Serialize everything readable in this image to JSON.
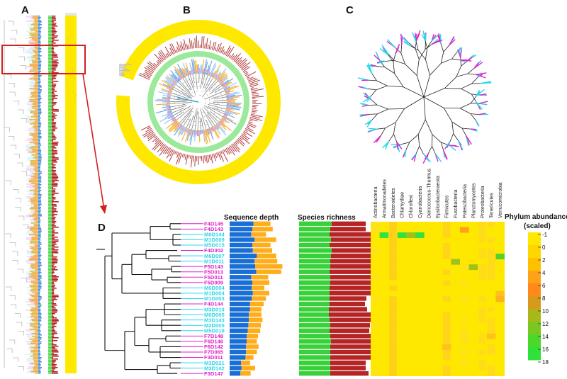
{
  "panels": {
    "a": "A",
    "b": "B",
    "c": "C",
    "d": "D"
  },
  "headers": {
    "depth": "Sequence depth",
    "richness": "Species richness",
    "abundance_line1": "Phylum  abundance",
    "abundance_line2": "(scaled)"
  },
  "colors": {
    "magenta_group": "#e020c8",
    "cyan_group": "#2ad8e8",
    "depth_blue": "#1a6fd6",
    "depth_orange": "#ffad1a",
    "rich_green": "#39d13a",
    "rich_red": "#b52525",
    "heat_base": "#ffe800"
  },
  "phyla": [
    "Actinobacteria",
    "Armatimonadetes",
    "Bacteroidetes",
    "Chlamydiae",
    "Chloroflexi",
    "Cyanobacteria",
    "Deinococcus-Thermus",
    "Epsilonbacteraeota",
    "Firmicutes",
    "Fusobacteria",
    "Patescibacteria",
    "Planctomycetes",
    "Proteobacteria",
    "Tenericutes",
    "Verrucomicrobia"
  ],
  "legend": [
    "-1",
    "0",
    "2",
    "4",
    "6",
    "8",
    "10",
    "12",
    "14",
    "16",
    "18"
  ],
  "samples": [
    {
      "id": "F4D145",
      "group": "magenta",
      "blue": 0.42,
      "orange": 0.3,
      "green": 0.46,
      "red": 0.48
    },
    {
      "id": "F4D143",
      "group": "magenta",
      "blue": 0.4,
      "orange": 0.36,
      "green": 0.44,
      "red": 0.5
    },
    {
      "id": "M6D144",
      "group": "cyan",
      "blue": 0.38,
      "orange": 0.26,
      "green": 0.43,
      "red": 0.58
    },
    {
      "id": "M1D009",
      "group": "cyan",
      "blue": 0.44,
      "orange": 0.38,
      "green": 0.45,
      "red": 0.64
    },
    {
      "id": "M5D015",
      "group": "cyan",
      "blue": 0.4,
      "orange": 0.32,
      "green": 0.43,
      "red": 0.7
    },
    {
      "id": "F4D302",
      "group": "magenta",
      "blue": 0.41,
      "orange": 0.34,
      "green": 0.46,
      "red": 0.64
    },
    {
      "id": "M6D007",
      "group": "cyan",
      "blue": 0.48,
      "orange": 0.34,
      "green": 0.45,
      "red": 0.68
    },
    {
      "id": "M1D011",
      "group": "cyan",
      "blue": 0.44,
      "orange": 0.4,
      "green": 0.44,
      "red": 0.66
    },
    {
      "id": "F5D143",
      "group": "magenta",
      "blue": 0.45,
      "orange": 0.48,
      "green": 0.44,
      "red": 0.66
    },
    {
      "id": "F5D013",
      "group": "magenta",
      "blue": 0.47,
      "orange": 0.44,
      "green": 0.43,
      "red": 0.7
    },
    {
      "id": "F5D011",
      "group": "magenta",
      "blue": 0.38,
      "orange": 0.3,
      "green": 0.44,
      "red": 0.58
    },
    {
      "id": "F5D009",
      "group": "magenta",
      "blue": 0.4,
      "orange": 0.3,
      "green": 0.44,
      "red": 0.62
    },
    {
      "id": "M6D004",
      "group": "cyan",
      "blue": 0.39,
      "orange": 0.22,
      "green": 0.43,
      "red": 0.58
    },
    {
      "id": "M1D004",
      "group": "cyan",
      "blue": 0.41,
      "orange": 0.29,
      "green": 0.43,
      "red": 0.62
    },
    {
      "id": "M1D003",
      "group": "cyan",
      "blue": 0.39,
      "orange": 0.25,
      "green": 0.43,
      "red": 0.52
    },
    {
      "id": "F4D144",
      "group": "magenta",
      "blue": 0.36,
      "orange": 0.24,
      "green": 0.43,
      "red": 0.5
    },
    {
      "id": "M3D013",
      "group": "cyan",
      "blue": 0.36,
      "orange": 0.2,
      "green": 0.42,
      "red": 0.54
    },
    {
      "id": "M6D005",
      "group": "cyan",
      "blue": 0.34,
      "orange": 0.22,
      "green": 0.42,
      "red": 0.6
    },
    {
      "id": "M3D143",
      "group": "cyan",
      "blue": 0.34,
      "orange": 0.24,
      "green": 0.43,
      "red": 0.58
    },
    {
      "id": "M2D005",
      "group": "cyan",
      "blue": 0.33,
      "orange": 0.22,
      "green": 0.44,
      "red": 0.56
    },
    {
      "id": "M5D019",
      "group": "cyan",
      "blue": 0.32,
      "orange": 0.22,
      "green": 0.43,
      "red": 0.56
    },
    {
      "id": "F7D148",
      "group": "magenta",
      "blue": 0.3,
      "orange": 0.2,
      "green": 0.44,
      "red": 0.58
    },
    {
      "id": "F6D146",
      "group": "magenta",
      "blue": 0.3,
      "orange": 0.18,
      "green": 0.45,
      "red": 0.58
    },
    {
      "id": "F6D142",
      "group": "magenta",
      "blue": 0.29,
      "orange": 0.22,
      "green": 0.44,
      "red": 0.8
    },
    {
      "id": "F7D065",
      "group": "magenta",
      "blue": 0.29,
      "orange": 0.19,
      "green": 0.44,
      "red": 0.62
    },
    {
      "id": "F3D011",
      "group": "magenta",
      "blue": 0.28,
      "orange": 0.14,
      "green": 0.44,
      "red": 0.6
    },
    {
      "id": "M3D021",
      "group": "cyan",
      "blue": 0.2,
      "orange": 0.16,
      "green": 0.44,
      "red": 0.5
    },
    {
      "id": "M3D142",
      "group": "cyan",
      "blue": 0.21,
      "orange": 0.24,
      "green": 0.44,
      "red": 0.5
    },
    {
      "id": "F3D147",
      "group": "magenta",
      "blue": 0.19,
      "orange": 0.18,
      "green": 0.44,
      "red": 0.54
    }
  ],
  "heat_cells": [
    {
      "row": 2,
      "col": 1,
      "color": "#33e23f"
    },
    {
      "row": 2,
      "col": 3,
      "color": "#33e23f"
    },
    {
      "row": 2,
      "col": 4,
      "color": "#9fc21a"
    },
    {
      "row": 2,
      "col": 5,
      "color": "#33e23f"
    },
    {
      "row": 1,
      "col": 10,
      "color": "#ffa01a"
    },
    {
      "row": 6,
      "col": 14,
      "color": "#57d02c"
    },
    {
      "row": 7,
      "col": 9,
      "color": "#9fc21a"
    },
    {
      "row": 8,
      "col": 11,
      "color": "#9fc21a"
    },
    {
      "row": 13,
      "col": 14,
      "color": "#ffc21a"
    },
    {
      "row": 14,
      "col": 14,
      "color": "#ffb21a"
    },
    {
      "row": 21,
      "col": 13,
      "color": "#ffc21a"
    },
    {
      "row": 23,
      "col": 8,
      "color": "#ffc21a"
    }
  ],
  "heat_column_tones": [
    {
      "col": 2,
      "color": "#ffd01a",
      "strength": 0.85
    },
    {
      "col": 8,
      "color": "#ffd41a",
      "strength": 0.7
    },
    {
      "col": 12,
      "color": "#ffdc1a",
      "strength": 0.55
    },
    {
      "col": 13,
      "color": "#ffda1a",
      "strength": 0.5
    },
    {
      "col": 0,
      "color": "#ffe21a",
      "strength": 0.3
    },
    {
      "col": 10,
      "color": "#ffe01a",
      "strength": 0.35
    }
  ]
}
